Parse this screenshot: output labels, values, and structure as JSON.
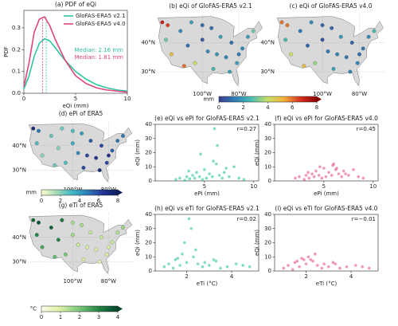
{
  "chart_data": [
    {
      "type": "line",
      "title": "(a) PDF of eQi",
      "xlabel": "eQi (mm)",
      "ylabel": "PDF",
      "x": [
        0,
        0.5,
        1,
        1.5,
        2,
        2.5,
        3,
        4,
        5,
        6,
        7,
        8,
        9,
        10
      ],
      "series": [
        {
          "name": "GloFAS-ERA5 v2.1",
          "color": "#2ec4a0",
          "values": [
            0.02,
            0.08,
            0.17,
            0.23,
            0.25,
            0.24,
            0.21,
            0.15,
            0.1,
            0.065,
            0.04,
            0.025,
            0.015,
            0.01
          ],
          "median": 2.16,
          "median_label": "Median: 2.16 mm"
        },
        {
          "name": "GloFAS-ERA5 v4.0",
          "color": "#e0457b",
          "values": [
            0.03,
            0.14,
            0.28,
            0.34,
            0.35,
            0.31,
            0.25,
            0.15,
            0.08,
            0.045,
            0.025,
            0.015,
            0.01,
            0.005
          ],
          "median": 1.81,
          "median_label": "Median: 1.81 mm"
        }
      ],
      "xlim": [
        0,
        10
      ],
      "xticks": [
        0,
        5,
        10
      ],
      "ylim": [
        0,
        0.38
      ],
      "yticks": [
        {
          "value": 0,
          "label": "0.0"
        },
        0.1,
        0.2,
        0.3
      ],
      "legend": "upper right"
    },
    {
      "type": "map",
      "title": "(b) eQi of GloFAS-ERA5 v2.1",
      "xlim": [
        -125,
        -66
      ],
      "ylim": [
        24,
        50
      ],
      "xticks": [
        {
          "value": -100,
          "label": "100°W"
        },
        {
          "value": -80,
          "label": "80°W"
        }
      ],
      "yticks": [
        {
          "value": 30,
          "label": "30°N"
        },
        {
          "value": 40,
          "label": "40°N"
        }
      ],
      "colormap": [
        "#3b3b8f",
        "#2f7fb8",
        "#4bbfb0",
        "#c8e06a",
        "#f2b13b",
        "#d7301f",
        "#8b0000"
      ],
      "clim": [
        0,
        8
      ],
      "points": {
        "lon": [
          -122,
          -120,
          -117,
          -112,
          -108,
          -104,
          -100,
          -97,
          -94,
          -90,
          -87,
          -84,
          -81,
          -78,
          -75,
          -72,
          -119,
          -110,
          -95,
          -85,
          -100,
          -106,
          -92,
          -80
        ],
        "lat": [
          47,
          41,
          36,
          44,
          39,
          33,
          46,
          37,
          31,
          42,
          35,
          40,
          33,
          38,
          42,
          44,
          46,
          32,
          45,
          30,
          41,
          47,
          36,
          36
        ],
        "values": [
          7,
          3,
          5,
          1.5,
          1,
          4,
          1,
          1.5,
          2.5,
          2,
          1.5,
          1,
          2,
          1.5,
          2,
          3,
          6.5,
          6,
          1,
          2,
          0.5,
          2,
          1.8,
          1.2
        ]
      },
      "colorbar": {
        "label": "mm",
        "ticks": [
          0,
          2,
          4,
          6,
          8
        ]
      }
    },
    {
      "type": "map",
      "title": "(c) eQi of GloFAS-ERA5 v4.0",
      "xlim": [
        -125,
        -66
      ],
      "ylim": [
        24,
        50
      ],
      "xticks": [
        {
          "value": -100,
          "label": "100°W"
        },
        {
          "value": -80,
          "label": "80°W"
        }
      ],
      "yticks": [
        {
          "value": 30,
          "label": "30°N"
        },
        {
          "value": 40,
          "label": "40°N"
        }
      ],
      "colormap": [
        "#3b3b8f",
        "#2f7fb8",
        "#4bbfb0",
        "#c8e06a",
        "#f2b13b",
        "#d7301f",
        "#8b0000"
      ],
      "clim": [
        0,
        8
      ],
      "points": {
        "lon": [
          -122,
          -120,
          -117,
          -112,
          -108,
          -104,
          -100,
          -97,
          -94,
          -90,
          -87,
          -84,
          -81,
          -78,
          -75,
          -72,
          -119,
          -110,
          -95,
          -85,
          -100,
          -106,
          -92,
          -80
        ],
        "lat": [
          47,
          41,
          36,
          44,
          39,
          33,
          46,
          37,
          31,
          42,
          35,
          40,
          33,
          38,
          42,
          44,
          46,
          32,
          45,
          30,
          41,
          47,
          36,
          36
        ],
        "values": [
          6,
          2.5,
          4,
          1.2,
          0.8,
          3.5,
          0.8,
          1.2,
          2,
          1.8,
          1.2,
          0.8,
          1.5,
          1.2,
          1.5,
          2.5,
          6,
          5,
          0.8,
          1.5,
          0.4,
          1.5,
          1.5,
          1
        ]
      }
    },
    {
      "type": "map",
      "title": "(d) ePi of ERA5",
      "xlim": [
        -125,
        -66
      ],
      "ylim": [
        24,
        50
      ],
      "xticks": [
        {
          "value": -100,
          "label": "100°W"
        },
        {
          "value": -80,
          "label": "80°W"
        }
      ],
      "yticks": [
        {
          "value": 30,
          "label": "30°N"
        },
        {
          "value": 40,
          "label": "40°N"
        }
      ],
      "colormap": [
        "#ffffcc",
        "#a1dab4",
        "#41b6c4",
        "#2c7fb8",
        "#253494",
        "#081d58"
      ],
      "clim": [
        0,
        8
      ],
      "points": {
        "lon": [
          -122,
          -120,
          -117,
          -112,
          -108,
          -104,
          -100,
          -97,
          -94,
          -90,
          -87,
          -84,
          -81,
          -78,
          -75,
          -72,
          -119,
          -110,
          -95,
          -85,
          -100,
          -106,
          -92,
          -80
        ],
        "lat": [
          47,
          41,
          36,
          44,
          39,
          33,
          46,
          37,
          31,
          42,
          35,
          40,
          33,
          38,
          42,
          44,
          46,
          32,
          45,
          30,
          41,
          47,
          36,
          36
        ],
        "values": [
          7,
          3,
          2,
          2.5,
          2,
          3,
          3,
          4.5,
          6,
          5.5,
          6.5,
          6,
          6,
          5.5,
          5,
          5,
          5,
          2.5,
          4,
          7,
          3.5,
          2.5,
          6,
          6.5
        ]
      },
      "colorbar": {
        "label": "mm",
        "ticks": [
          0,
          2,
          4,
          6,
          8
        ]
      }
    },
    {
      "type": "scatter",
      "title": "(e) eQi vs ePi for GloFAS-ERA5 v2.1",
      "xlabel": "ePi (mm)",
      "ylabel": "eQi (mm)",
      "color": "#2ec4a0",
      "annotation": "r=0.27",
      "xlim": [
        0,
        10.5
      ],
      "xticks": [
        5,
        10
      ],
      "ylim": [
        0,
        40
      ],
      "yticks": [
        0,
        10,
        20,
        30,
        40
      ],
      "x": [
        2.1,
        2.5,
        3,
        3.2,
        3.5,
        3.8,
        4,
        4.2,
        4.5,
        4.8,
        5,
        5.2,
        5.5,
        5.8,
        6,
        6.2,
        6.5,
        6.8,
        7,
        7.5,
        8,
        8.5,
        9,
        4.6,
        5.9,
        6.3,
        3.4,
        7.2
      ],
      "values": [
        1,
        2,
        0.5,
        3,
        1.5,
        4,
        2,
        6,
        3,
        1,
        8,
        2,
        5,
        3,
        37,
        12,
        4,
        2,
        6,
        3,
        10,
        2,
        1,
        19,
        14,
        25,
        7,
        9
      ]
    },
    {
      "type": "scatter",
      "title": "(f) eQi vs ePi for GloFAS-ERA5 v4.0",
      "xlabel": "ePi (mm)",
      "ylabel": "eQi (mm)",
      "color": "#e8557f",
      "annotation": "r=0.45",
      "xlim": [
        0,
        10.5
      ],
      "xticks": [
        5,
        10
      ],
      "ylim": [
        0,
        40
      ],
      "yticks": [
        0,
        10,
        20,
        30,
        40
      ],
      "x": [
        2.1,
        2.5,
        3,
        3.2,
        3.5,
        3.8,
        4,
        4.2,
        4.5,
        4.8,
        5,
        5.2,
        5.5,
        5.8,
        6,
        6.2,
        6.5,
        6.8,
        7,
        7.5,
        8,
        8.5,
        9,
        4.6,
        5.9,
        6.3,
        3.4,
        7.2
      ],
      "values": [
        2,
        3,
        1,
        4,
        2,
        5,
        3,
        7,
        4,
        2,
        9,
        3,
        6,
        4,
        12,
        8,
        5,
        3,
        7,
        4,
        8,
        3,
        2,
        10,
        11,
        9,
        6,
        5
      ]
    },
    {
      "type": "map",
      "title": "(g) eTi of ERA5",
      "xlim": [
        -125,
        -66
      ],
      "ylim": [
        24,
        50
      ],
      "xticks": [
        {
          "value": -100,
          "label": "100°W"
        },
        {
          "value": -80,
          "label": "80°W"
        }
      ],
      "yticks": [
        {
          "value": 30,
          "label": "30°N"
        },
        {
          "value": 40,
          "label": "40°N"
        }
      ],
      "colormap": [
        "#ffffe5",
        "#d9f0a3",
        "#78c679",
        "#238443",
        "#004529"
      ],
      "clim": [
        0,
        4
      ],
      "points": {
        "lon": [
          -122,
          -120,
          -117,
          -112,
          -108,
          -104,
          -100,
          -97,
          -94,
          -90,
          -87,
          -84,
          -81,
          -78,
          -75,
          -72,
          -119,
          -110,
          -95,
          -85,
          -100,
          -106,
          -92,
          -80
        ],
        "lat": [
          47,
          41,
          36,
          44,
          39,
          33,
          46,
          37,
          31,
          42,
          35,
          40,
          33,
          38,
          42,
          44,
          46,
          32,
          45,
          30,
          41,
          47,
          36,
          36
        ],
        "values": [
          3.5,
          3,
          2.5,
          3.5,
          3,
          2,
          1.5,
          1.2,
          1,
          1.2,
          1,
          1.2,
          1,
          1.2,
          1.4,
          1.6,
          3.8,
          2.2,
          1.5,
          0.8,
          1.6,
          3.2,
          1,
          1
        ]
      },
      "colorbar": {
        "label": "°C",
        "ticks": [
          0,
          1,
          2,
          3,
          4
        ]
      }
    },
    {
      "type": "scatter",
      "title": "(h) eQi vs eTi for GloFAS-ERA5 v2.1",
      "xlabel": "eTi (°C)",
      "ylabel": "eQi (mm)",
      "color": "#2ec4a0",
      "annotation": "r=0.02",
      "xlim": [
        0.6,
        5.2
      ],
      "xticks": [
        2,
        4
      ],
      "ylim": [
        0,
        40
      ],
      "yticks": [
        0,
        10,
        20,
        30,
        40
      ],
      "x": [
        1,
        1.2,
        1.4,
        1.5,
        1.7,
        1.8,
        2,
        2.1,
        2.2,
        2.3,
        2.5,
        2.7,
        3,
        3.2,
        3.5,
        3.8,
        4.2,
        4.5,
        4.8,
        1.9,
        2.4,
        1.6,
        2.8,
        3.3
      ],
      "values": [
        3,
        5,
        2,
        8,
        4,
        12,
        6,
        37,
        30,
        10,
        5,
        3,
        4,
        8,
        2,
        3,
        5,
        4,
        3,
        20,
        15,
        9,
        6,
        7
      ]
    },
    {
      "type": "scatter",
      "title": "(i) eQi vs eTi for GloFAS-ERA5 v4.0",
      "xlabel": "eTi (°C)",
      "ylabel": "eQi (mm)",
      "color": "#e8557f",
      "annotation": "r=−0.01",
      "xlim": [
        0.6,
        5.2
      ],
      "xticks": [
        2,
        4
      ],
      "ylim": [
        0,
        40
      ],
      "yticks": [
        0,
        10,
        20,
        30,
        40
      ],
      "x": [
        1,
        1.2,
        1.4,
        1.5,
        1.7,
        1.8,
        2,
        2.1,
        2.2,
        2.3,
        2.5,
        2.7,
        3,
        3.2,
        3.5,
        3.8,
        4.2,
        4.5,
        4.8,
        1.9,
        2.4,
        1.6,
        2.8,
        3.3
      ],
      "values": [
        2,
        4,
        1,
        6,
        3,
        9,
        5,
        10,
        8,
        7,
        4,
        2,
        3,
        6,
        2,
        3,
        4,
        3,
        2,
        8,
        12,
        7,
        5,
        5
      ]
    }
  ]
}
